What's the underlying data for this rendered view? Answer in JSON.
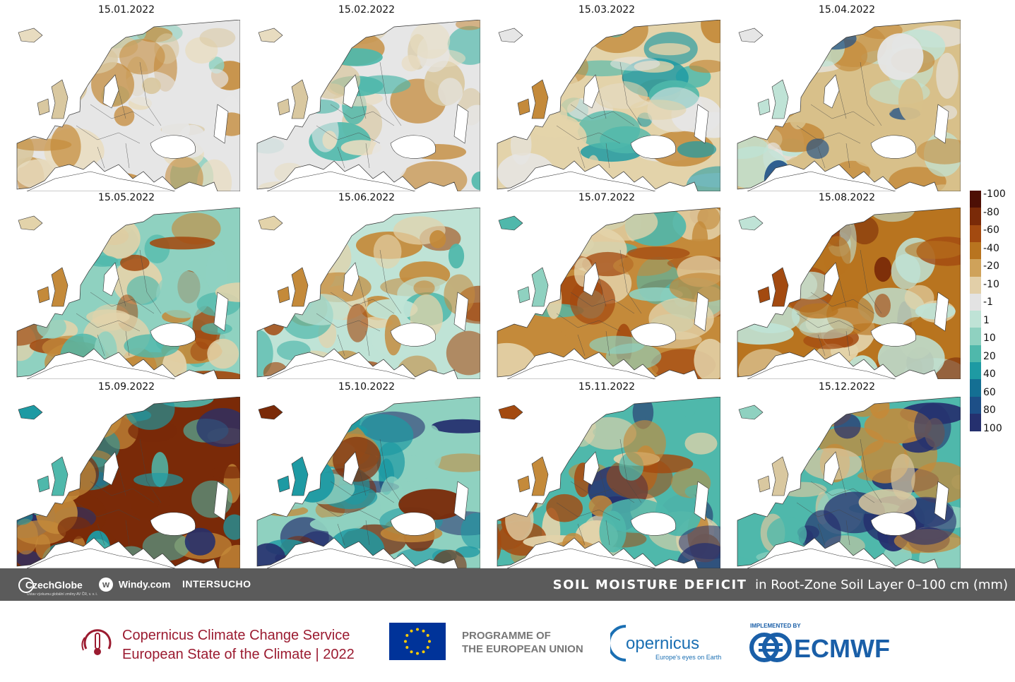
{
  "maps": {
    "dates": [
      "15.01.2022",
      "15.02.2022",
      "15.03.2022",
      "15.04.2022",
      "15.05.2022",
      "15.06.2022",
      "15.07.2022",
      "15.08.2022",
      "15.09.2022",
      "15.10.2022",
      "15.11.2022",
      "15.12.2022"
    ]
  },
  "legend": {
    "labels": [
      "-100",
      "-80",
      "-60",
      "-40",
      "-20",
      "-10",
      "-1",
      "1",
      "10",
      "20",
      "40",
      "60",
      "80",
      "100"
    ],
    "colors": [
      "#4d0f05",
      "#7a2a08",
      "#a34a10",
      "#b8741f",
      "#cfa25a",
      "#e2cfa8",
      "#e3e3e3",
      "#bfe3d6",
      "#8fd1c0",
      "#4fb8ab",
      "#1e9aa3",
      "#146f93",
      "#1d4f87",
      "#25306e"
    ]
  },
  "footer_bar": {
    "logos": {
      "czechglobe": "CzechGlobe",
      "czechglobe_sub": "Ústav výzkumu globální změny AV ČR, v. v. i.",
      "windy": "Windy.com",
      "intersucho": "INTERSUCHO"
    },
    "title_strong": "SOIL MOISTURE DEFICIT",
    "title_rest": "in Root-Zone Soil Layer 0–100 cm (mm)"
  },
  "credits": {
    "c3s_line1": "Copernicus Climate Change Service",
    "c3s_line2": "European State of the Climate | 2022",
    "eu_line1": "PROGRAMME OF",
    "eu_line2": "THE EUROPEAN UNION",
    "copernicus_name": "opernicus",
    "copernicus_tagline": "Europe's eyes on Earth",
    "ecmwf_implemented": "IMPLEMENTED BY",
    "ecmwf_name": "ECMWF",
    "colors": {
      "c3s": "#9b1b30",
      "eu_blue": "#003399",
      "eu_star": "#ffcc00",
      "copernicus": "#1a6fb3",
      "ecmwf": "#1a5fa8"
    }
  }
}
